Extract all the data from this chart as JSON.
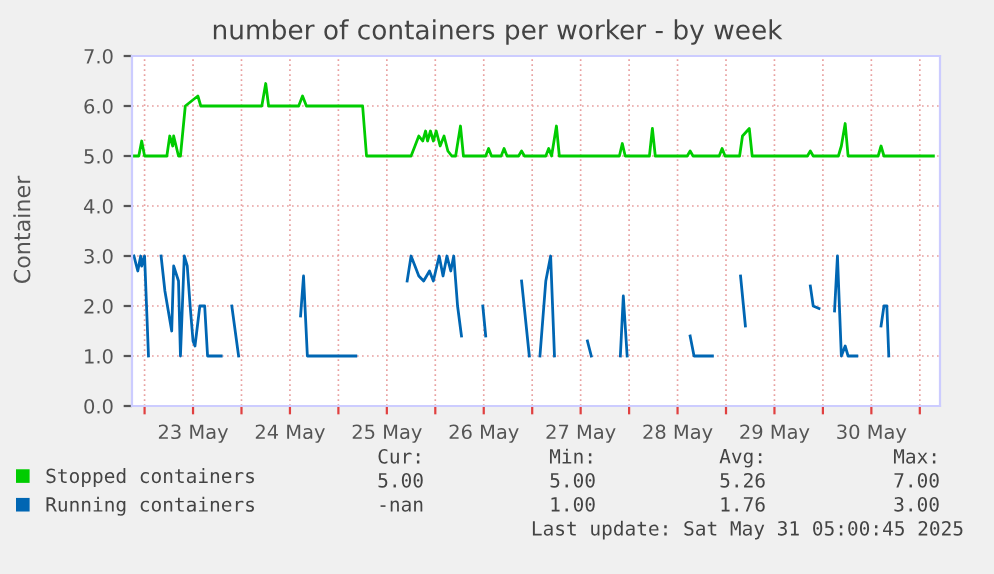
{
  "chart_data": {
    "type": "line",
    "title": "number of containers per worker - by week",
    "ylabel": "Container",
    "xlim": [
      "2025-05-22T20:53",
      "2025-05-31T05:00"
    ],
    "ylim": [
      0,
      7
    ],
    "xticks": [
      {
        "value": "2025-05-23",
        "label": null
      },
      {
        "value": "2025-05-23T12:00",
        "label": "23 May"
      },
      {
        "value": "2025-05-24",
        "label": null
      },
      {
        "value": "2025-05-24T12:00",
        "label": "24 May"
      },
      {
        "value": "2025-05-25",
        "label": null
      },
      {
        "value": "2025-05-25T12:00",
        "label": "25 May"
      },
      {
        "value": "2025-05-26",
        "label": null
      },
      {
        "value": "2025-05-26T12:00",
        "label": "26 May"
      },
      {
        "value": "2025-05-27",
        "label": null
      },
      {
        "value": "2025-05-27T12:00",
        "label": "27 May"
      },
      {
        "value": "2025-05-28",
        "label": null
      },
      {
        "value": "2025-05-28T12:00",
        "label": "28 May"
      },
      {
        "value": "2025-05-29",
        "label": null
      },
      {
        "value": "2025-05-29T12:00",
        "label": "29 May"
      },
      {
        "value": "2025-05-30",
        "label": null
      },
      {
        "value": "2025-05-30T12:00",
        "label": "30 May"
      },
      {
        "value": "2025-05-31",
        "label": null
      }
    ],
    "yticks": [
      {
        "value": 0,
        "label": "0.0"
      },
      {
        "value": 1,
        "label": "1.0"
      },
      {
        "value": 2,
        "label": "2.0"
      },
      {
        "value": 3,
        "label": "3.0"
      },
      {
        "value": 4,
        "label": "4.0"
      },
      {
        "value": 5,
        "label": "5.0"
      },
      {
        "value": 6,
        "label": "6.0"
      },
      {
        "value": 7,
        "label": "7.0"
      }
    ],
    "grid": true,
    "legend": "bottom",
    "series": [
      {
        "name": "Stopped containers",
        "color": "#00cc00",
        "x": [
          "2025-05-22T21:07",
          "2025-05-22T22:34",
          "2025-05-22T23:17",
          "2025-05-23T00:00",
          "2025-05-23T05:31",
          "2025-05-23T06:14",
          "2025-05-23T06:58",
          "2025-05-23T07:12",
          "2025-05-23T08:24",
          "2025-05-23T08:53",
          "2025-05-23T10:05",
          "2025-05-23T13:12",
          "2025-05-23T13:55",
          "2025-05-24T05:02",
          "2025-05-24T06:00",
          "2025-05-24T06:43",
          "2025-05-24T14:10",
          "2025-05-24T15:07",
          "2025-05-24T16:05",
          "2025-05-25T06:00",
          "2025-05-25T06:58",
          "2025-05-25T18:00",
          "2025-05-25T18:58",
          "2025-05-25T19:55",
          "2025-05-25T20:53",
          "2025-05-25T21:36",
          "2025-05-25T22:05",
          "2025-05-25T22:48",
          "2025-05-25T23:31",
          "2025-05-26T00:14",
          "2025-05-26T01:12",
          "2025-05-26T02:10",
          "2025-05-26T03:07",
          "2025-05-26T04:05",
          "2025-05-26T05:02",
          "2025-05-26T06:14",
          "2025-05-26T06:58",
          "2025-05-26T12:29",
          "2025-05-26T13:12",
          "2025-05-26T13:55",
          "2025-05-26T16:19",
          "2025-05-26T17:02",
          "2025-05-26T17:46",
          "2025-05-26T20:38",
          "2025-05-26T21:22",
          "2025-05-26T22:05",
          "2025-05-27T03:22",
          "2025-05-27T04:05",
          "2025-05-27T04:48",
          "2025-05-27T06:00",
          "2025-05-27T06:43",
          "2025-05-27T21:36",
          "2025-05-27T22:19",
          "2025-05-27T23:02",
          "2025-05-28T05:02",
          "2025-05-28T05:46",
          "2025-05-28T06:29",
          "2025-05-28T14:24",
          "2025-05-28T15:07",
          "2025-05-28T15:50",
          "2025-05-28T22:19",
          "2025-05-28T23:02",
          "2025-05-28T23:46",
          "2025-05-29T03:22",
          "2025-05-29T04:05",
          "2025-05-29T05:46",
          "2025-05-29T06:29",
          "2025-05-29T20:10",
          "2025-05-29T20:53",
          "2025-05-29T21:36",
          "2025-05-30T03:50",
          "2025-05-30T04:34",
          "2025-05-30T05:31",
          "2025-05-30T06:14",
          "2025-05-30T13:41",
          "2025-05-30T14:24",
          "2025-05-30T15:07",
          "2025-05-31T03:22"
        ],
        "values": [
          5.0,
          5.0,
          5.3,
          5.0,
          5.0,
          5.4,
          5.2,
          5.4,
          5.0,
          5.0,
          6.0,
          6.2,
          6.0,
          6.0,
          6.45,
          6.0,
          6.0,
          6.2,
          6.0,
          6.0,
          5.0,
          5.0,
          5.2,
          5.4,
          5.3,
          5.5,
          5.3,
          5.5,
          5.3,
          5.5,
          5.2,
          5.4,
          5.1,
          5.0,
          5.0,
          5.6,
          5.0,
          5.0,
          5.15,
          5.0,
          5.0,
          5.15,
          5.0,
          5.0,
          5.1,
          5.0,
          5.0,
          5.15,
          5.0,
          5.6,
          5.0,
          5.0,
          5.25,
          5.0,
          5.0,
          5.55,
          5.0,
          5.0,
          5.1,
          5.0,
          5.0,
          5.15,
          5.0,
          5.0,
          5.4,
          5.55,
          5.0,
          5.0,
          5.1,
          5.0,
          5.0,
          5.2,
          5.65,
          5.0,
          5.0,
          5.2,
          5.0,
          5.0
        ]
      },
      {
        "name": "Running containers",
        "color": "#0066b3",
        "x": [
          "2025-05-22T21:22",
          "2025-05-22T22:19",
          "2025-05-22T23:02",
          "2025-05-22T23:17",
          "2025-05-23T00:00",
          "2025-05-23T00:58",
          "2025-05-23T02:24",
          "2025-05-23T04:05",
          "2025-05-23T05:02",
          "2025-05-23T06:43",
          "2025-05-23T07:12",
          "2025-05-23T08:24",
          "2025-05-23T08:53",
          "2025-05-23T09:50",
          "2025-05-23T10:34",
          "2025-05-23T11:17",
          "2025-05-23T12:00",
          "2025-05-23T12:29",
          "2025-05-23T13:41",
          "2025-05-23T14:53",
          "2025-05-23T15:36",
          "2025-05-23T18:58",
          "2025-05-23T20:24",
          "2025-05-23T21:36",
          "2025-05-23T23:17",
          "2025-05-24T07:12",
          "2025-05-24T14:38",
          "2025-05-24T15:22",
          "2025-05-24T16:19",
          "2025-05-25T04:19",
          "2025-05-25T12:00",
          "2025-05-25T17:02",
          "2025-05-25T18:00",
          "2025-05-25T18:58",
          "2025-05-25T19:55",
          "2025-05-25T21:07",
          "2025-05-25T22:34",
          "2025-05-25T23:31",
          "2025-05-26T00:58",
          "2025-05-26T01:55",
          "2025-05-26T02:53",
          "2025-05-26T03:50",
          "2025-05-26T04:34",
          "2025-05-26T05:31",
          "2025-05-26T06:29",
          "2025-05-26T09:36",
          "2025-05-26T11:46",
          "2025-05-26T12:29",
          "2025-05-26T16:48",
          "2025-05-26T21:22",
          "2025-05-26T23:17",
          "2025-05-27T00:29",
          "2025-05-27T01:55",
          "2025-05-27T03:22",
          "2025-05-27T04:34",
          "2025-05-27T05:31",
          "2025-05-27T09:36",
          "2025-05-27T13:41",
          "2025-05-27T14:38",
          "2025-05-27T19:12",
          "2025-05-27T21:50",
          "2025-05-27T22:34",
          "2025-05-27T23:31",
          "2025-05-28T07:12",
          "2025-05-28T15:07",
          "2025-05-28T16:05",
          "2025-05-28T20:38",
          "2025-05-29T00:00",
          "2025-05-29T03:36",
          "2025-05-29T04:48",
          "2025-05-29T12:00",
          "2025-05-29T20:53",
          "2025-05-29T21:36",
          "2025-05-29T23:02",
          "2025-05-30T01:12",
          "2025-05-30T02:53",
          "2025-05-30T03:36",
          "2025-05-30T04:34",
          "2025-05-30T05:31",
          "2025-05-30T06:14",
          "2025-05-30T08:24",
          "2025-05-30T12:00",
          "2025-05-30T14:24",
          "2025-05-30T15:07",
          "2025-05-30T15:50",
          "2025-05-30T16:19"
        ],
        "values": [
          3.0,
          2.7,
          3.0,
          2.8,
          3.0,
          1.0,
          null,
          3.0,
          2.3,
          1.5,
          2.8,
          2.5,
          1.0,
          3.0,
          2.8,
          2.0,
          1.3,
          1.2,
          2.0,
          2.0,
          1.0,
          1.0,
          null,
          2.0,
          1.0,
          null,
          1.8,
          2.6,
          1.0,
          1.0,
          null,
          2.5,
          3.0,
          2.8,
          2.6,
          2.5,
          2.7,
          2.5,
          3.0,
          2.6,
          3.0,
          2.7,
          3.0,
          2.0,
          1.4,
          null,
          2.0,
          1.4,
          null,
          2.5,
          1.0,
          null,
          1.0,
          2.5,
          3.0,
          1.0,
          null,
          1.3,
          1.0,
          null,
          1.0,
          2.2,
          1.0,
          null,
          1.4,
          1.0,
          1.0,
          null,
          2.6,
          1.6,
          null,
          2.4,
          2.0,
          1.95,
          null,
          1.9,
          3.0,
          1.0,
          1.2,
          1.0,
          1.0,
          null,
          1.6,
          2.0,
          2.0,
          1.0
        ]
      }
    ],
    "annotations": [
      "Cur:",
      "Min:",
      "Avg:",
      "Max:",
      "5.00",
      "5.00",
      "5.26",
      "7.00",
      "-nan",
      "1.00",
      "1.76",
      "3.00",
      "Last update: Sat May 31 05:00:45 2025"
    ]
  }
}
